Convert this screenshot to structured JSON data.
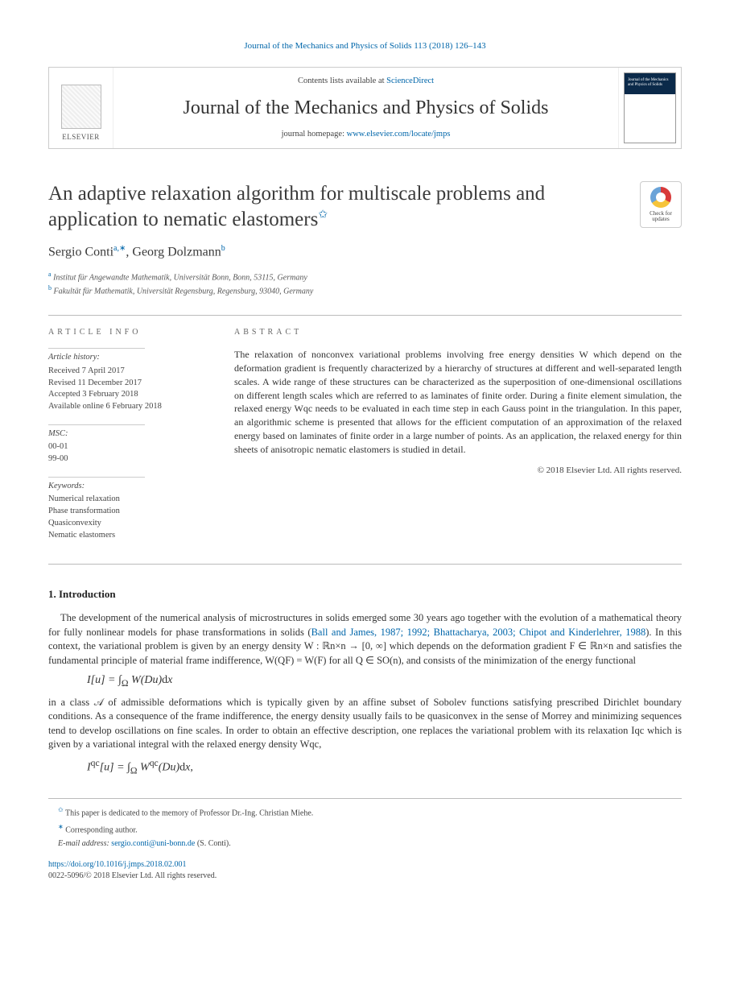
{
  "crossref": {
    "journal": "Journal of the Mechanics and Physics of Solids",
    "citation": "113 (2018) 126–143"
  },
  "masthead": {
    "publisher_word": "ELSEVIER",
    "contents_prefix": "Contents lists available at ",
    "contents_link": "ScienceDirect",
    "journal_title": "Journal of the Mechanics and Physics of Solids",
    "homepage_prefix": "journal homepage: ",
    "homepage_url": "www.elsevier.com/locate/jmps",
    "cover_title": "Journal of the Mechanics and Physics of Solids"
  },
  "check_updates": "Check for updates",
  "title": "An adaptive relaxation algorithm for multiscale problems and application to nematic elastomers",
  "title_star": "✩",
  "authors": {
    "a1_name": "Sergio Conti",
    "a1_affil": "a,",
    "a1_corr": "∗",
    "sep": ", ",
    "a2_name": "Georg Dolzmann",
    "a2_affil": "b"
  },
  "affiliations": {
    "a": "Institut für Angewandte Mathematik, Universität Bonn, Bonn, 53115, Germany",
    "b": "Fakultät für Mathematik, Universität Regensburg, Regensburg, 93040, Germany"
  },
  "info": {
    "head": "ARTICLE INFO",
    "history_title": "Article history:",
    "history": {
      "received": "Received 7 April 2017",
      "revised": "Revised 11 December 2017",
      "accepted": "Accepted 3 February 2018",
      "online": "Available online 6 February 2018"
    },
    "msc_title": "MSC:",
    "msc": {
      "m1": "00-01",
      "m2": "99-00"
    },
    "kw_title": "Keywords:",
    "keywords": {
      "k1": "Numerical relaxation",
      "k2": "Phase transformation",
      "k3": "Quasiconvexity",
      "k4": "Nematic elastomers"
    }
  },
  "abstract": {
    "head": "ABSTRACT",
    "text": "The relaxation of nonconvex variational problems involving free energy densities W which depend on the deformation gradient is frequently characterized by a hierarchy of structures at different and well-separated length scales. A wide range of these structures can be characterized as the superposition of one-dimensional oscillations on different length scales which are referred to as laminates of finite order. During a finite element simulation, the relaxed energy Wqc needs to be evaluated in each time step in each Gauss point in the triangulation. In this paper, an algorithmic scheme is presented that allows for the efficient computation of an approximation of the relaxed energy based on laminates of finite order in a large number of points. As an application, the relaxed energy for thin sheets of anisotropic nematic elastomers is studied in detail.",
    "copyright": "© 2018 Elsevier Ltd. All rights reserved."
  },
  "section1": {
    "head": "1. Introduction",
    "p1a": "The development of the numerical analysis of microstructures in solids emerged some 30 years ago together with the evolution of a mathematical theory for fully nonlinear models for phase transformations in solids (",
    "p1_ref": "Ball and James, 1987; 1992; Bhattacharya, 2003; Chipot and Kinderlehrer, 1988",
    "p1b": "). In this context, the variational problem is given by an energy density W : ℝn×n → [0, ∞] which depends on the deformation gradient F ∈ ℝn×n and satisfies the fundamental principle of material frame indifference, W(QF) = W(F) for all Q ∈ SO(n), and consists of the minimization of the energy functional",
    "eq1": "I[u] = ∫Ω W(Du) dx",
    "p2": "in a class 𝒜 of admissible deformations which is typically given by an affine subset of Sobolev functions satisfying prescribed Dirichlet boundary conditions. As a consequence of the frame indifference, the energy density usually fails to be quasiconvex in the sense of Morrey and minimizing sequences tend to develop oscillations on fine scales. In order to obtain an effective description, one replaces the variational problem with its relaxation Iqc which is given by a variational integral with the relaxed energy density Wqc,",
    "eq2": "Iqc[u] = ∫Ω Wqc(Du) dx,"
  },
  "footnotes": {
    "dedication": "This paper is dedicated to the memory of Professor Dr.-Ing. Christian Miehe.",
    "corresponding": "Corresponding author.",
    "email_label": "E-mail address:",
    "email": "sergio.conti@uni-bonn.de",
    "email_who": "(S. Conti)."
  },
  "doi": {
    "url": "https://doi.org/10.1016/j.jmps.2018.02.001",
    "issn_line": "0022-5096/© 2018 Elsevier Ltd. All rights reserved."
  },
  "colors": {
    "link": "#0066aa",
    "text": "#333333",
    "rule": "#bbbbbb"
  }
}
